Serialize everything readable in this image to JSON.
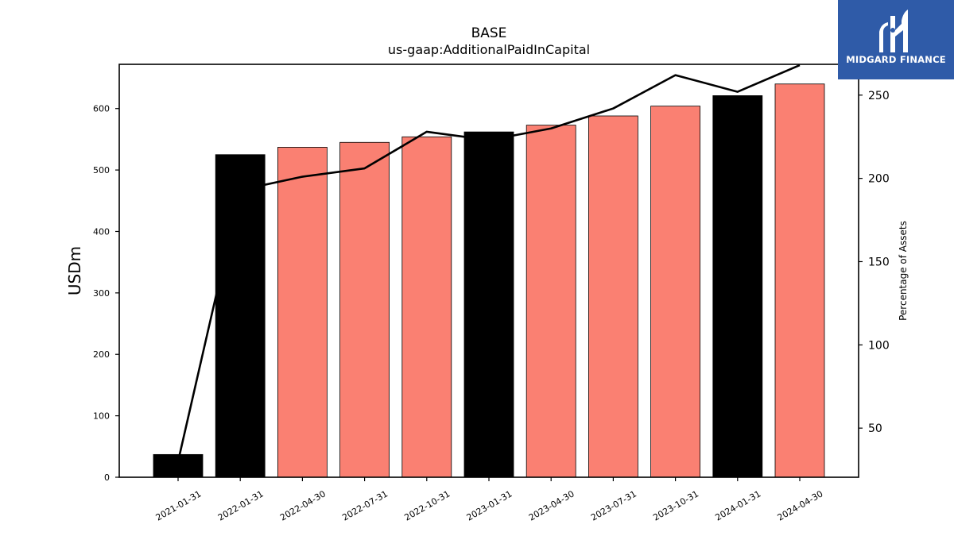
{
  "logo": {
    "text": "MIDGARD FINANCE",
    "background": "#2f5ba8"
  },
  "chart_data": {
    "type": "bar",
    "title": "BASE",
    "subtitle": "us-gaap:AdditionalPaidInCapital",
    "ylabel": "USDm",
    "y2label": "Percentage of Assets",
    "categories": [
      "2021-01-31",
      "2022-01-31",
      "2022-04-30",
      "2022-07-31",
      "2022-10-31",
      "2023-01-31",
      "2023-04-30",
      "2023-07-31",
      "2023-10-31",
      "2024-01-31",
      "2024-04-30"
    ],
    "series": [
      {
        "type": "bar",
        "values": [
          37,
          525,
          537,
          545,
          554,
          562,
          573,
          588,
          604,
          621,
          640
        ],
        "colors": [
          "#000000",
          "#000000",
          "#fa8072",
          "#fa8072",
          "#fa8072",
          "#000000",
          "#fa8072",
          "#fa8072",
          "#fa8072",
          "#000000",
          "#fa8072"
        ]
      },
      {
        "type": "line",
        "axis": "right",
        "color": "#000000",
        "values": [
          30,
          193,
          201,
          206,
          228,
          223,
          230,
          242,
          262,
          252,
          268
        ]
      }
    ],
    "ylim": [
      0,
      672
    ],
    "yticks": [
      0,
      100,
      200,
      300,
      400,
      500,
      600
    ],
    "y2lim": [
      20.5,
      268.5
    ],
    "y2ticks": [
      50,
      100,
      150,
      200,
      250
    ],
    "grid": false,
    "legend": "none"
  }
}
